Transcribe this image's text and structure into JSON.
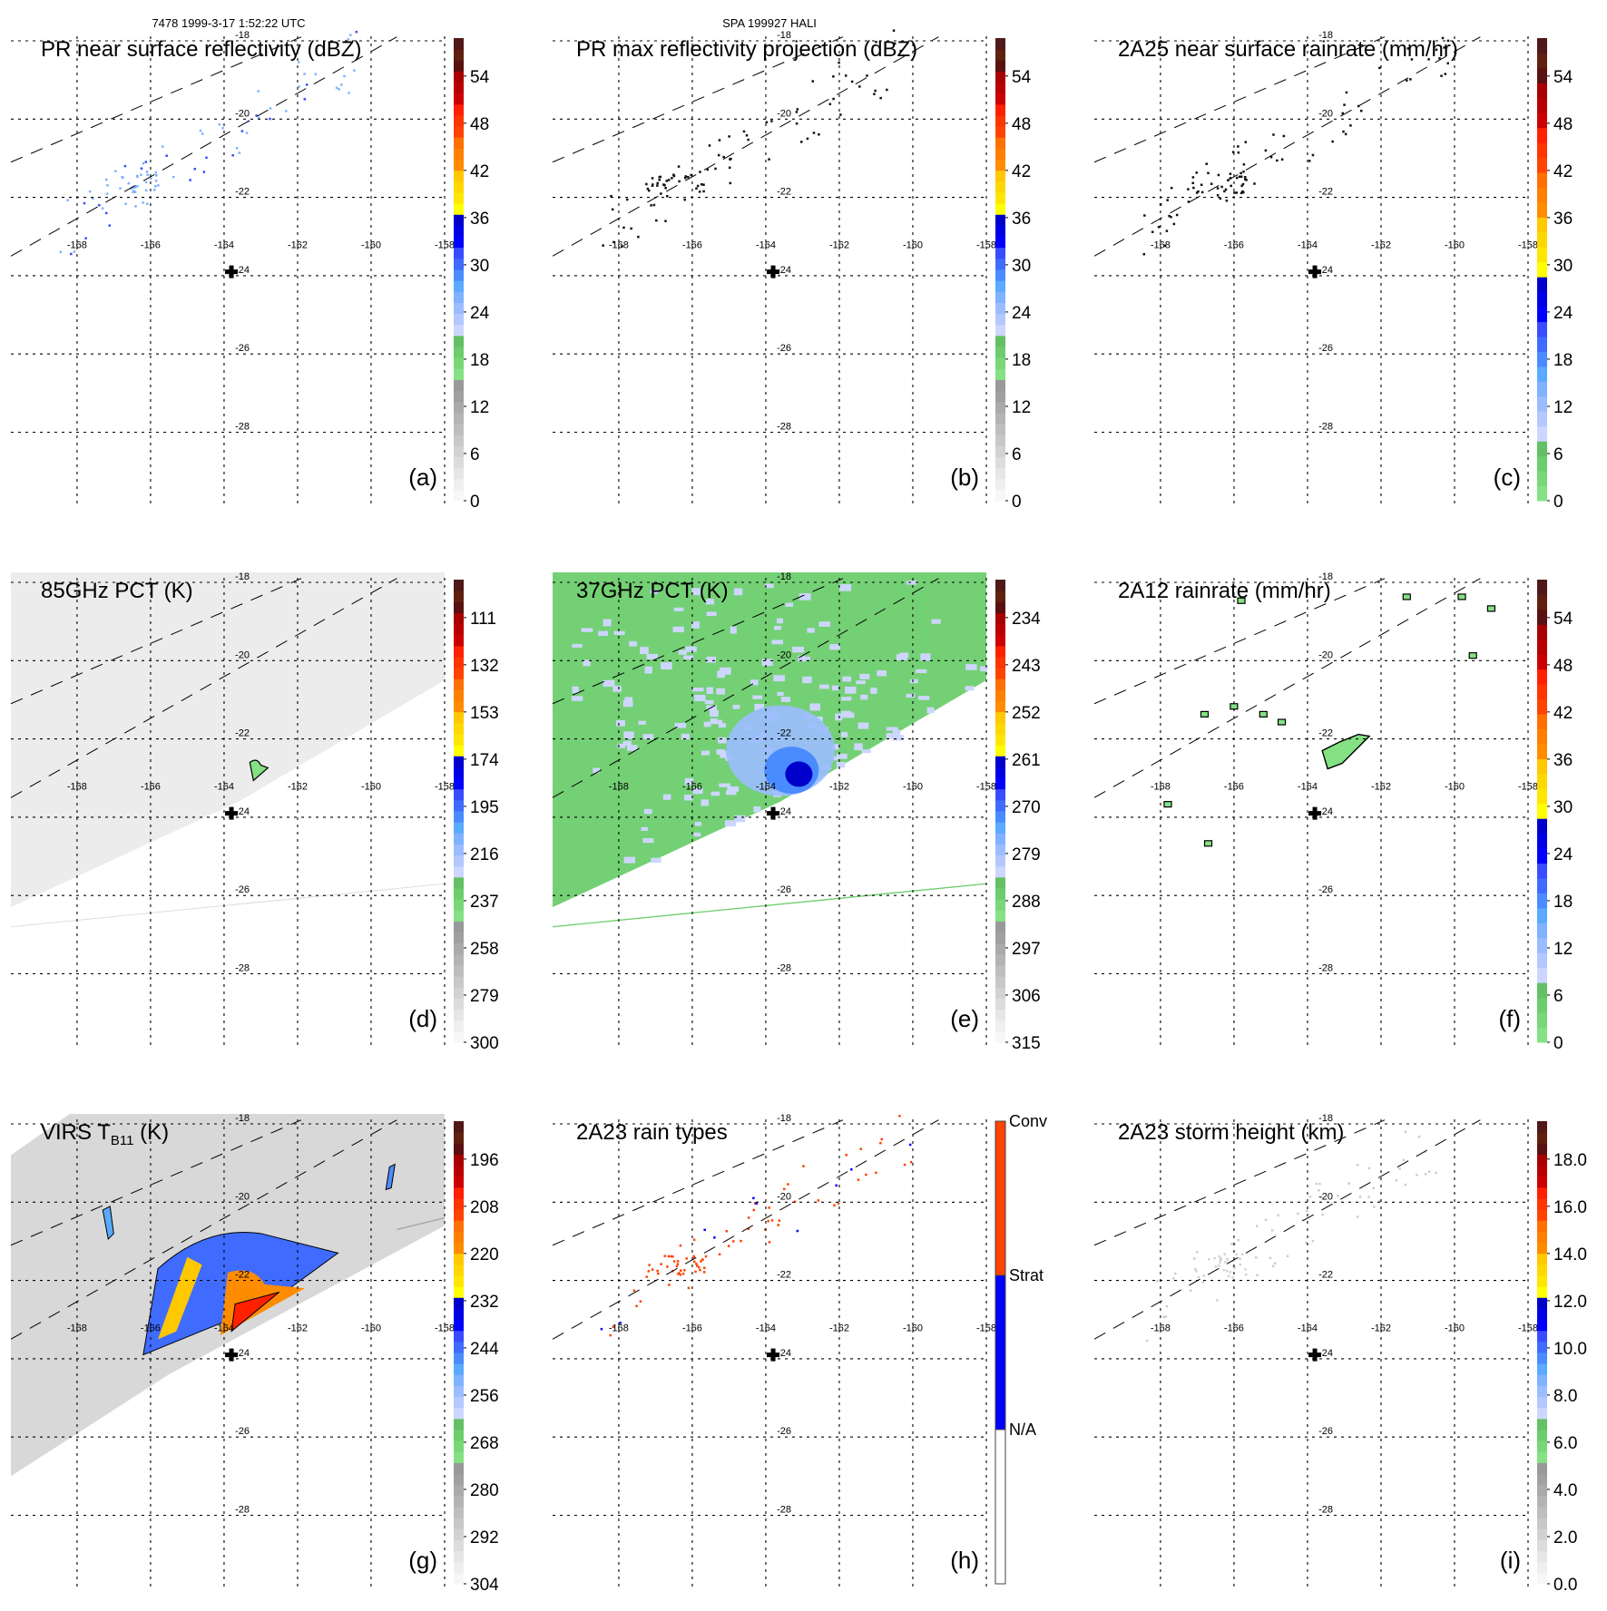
{
  "figure": {
    "header_left": "7478 1999-3-17 1:52:22 UTC",
    "header_center": "SPA 199927 HALI"
  },
  "chart_data": [
    {
      "id": "a",
      "type": "heatmap",
      "panel_label": "(a)",
      "title": "PR near surface reflectivity (dBZ)",
      "field": "pr_near_surface_reflectivity",
      "colorbar": {
        "palette": "standard",
        "ticks": [
          "54",
          "48",
          "42",
          "36",
          "30",
          "24",
          "18",
          "12",
          "6",
          "0"
        ],
        "range": [
          0,
          60
        ],
        "unit": "dBZ"
      },
      "swath": "pr",
      "content": "scattered weak echoes within PR swath, mostly light blue/blue near -21.5N -166.5E"
    },
    {
      "id": "b",
      "type": "heatmap",
      "panel_label": "(b)",
      "title": "PR max reflectivity projection (dBZ)",
      "field": "pr_max_reflectivity_projection",
      "colorbar": {
        "palette": "standard",
        "ticks": [
          "54",
          "48",
          "42",
          "36",
          "30",
          "24",
          "18",
          "12",
          "6",
          "0"
        ],
        "range": [
          0,
          60
        ],
        "unit": "dBZ"
      },
      "swath": "pr",
      "content": "scattered dark contoured echoes within PR swath"
    },
    {
      "id": "c",
      "type": "heatmap",
      "panel_label": "(c)",
      "title": "2A25 near surface rainrate (mm/hr)",
      "field": "rainrate_2a25",
      "colorbar": {
        "palette": "rain",
        "ticks": [
          "54",
          "48",
          "42",
          "36",
          "30",
          "24",
          "18",
          "12",
          "6",
          "0"
        ],
        "range": [
          0,
          60
        ],
        "unit": "mm/hr"
      },
      "swath": "pr",
      "content": "scattered dark contoured light rain within PR swath"
    },
    {
      "id": "d",
      "type": "heatmap",
      "panel_label": "(d)",
      "title": "85GHz PCT (K)",
      "field": "pct_85ghz",
      "colorbar": {
        "palette": "standard",
        "ticks": [
          "111",
          "132",
          "153",
          "174",
          "195",
          "216",
          "237",
          "258",
          "279",
          "300"
        ],
        "range": [
          300,
          90
        ],
        "unit": "K"
      },
      "swath": "tmi",
      "content": "mostly light grey swath, small green contoured feature near -22.7N -163.3E"
    },
    {
      "id": "e",
      "type": "heatmap",
      "panel_label": "(e)",
      "title": "37GHz PCT (K)",
      "field": "pct_37ghz",
      "colorbar": {
        "palette": "standard",
        "ticks": [
          "234",
          "243",
          "252",
          "261",
          "270",
          "279",
          "288",
          "297",
          "306",
          "315"
        ],
        "range": [
          315,
          225
        ],
        "unit": "K"
      },
      "swath": "tmi",
      "content": "green swath with light-blue patches, dark blue minimum near -22.7N -163.5E"
    },
    {
      "id": "f",
      "type": "heatmap",
      "panel_label": "(f)",
      "title": "2A12 rainrate (mm/hr)",
      "field": "rainrate_2a12",
      "colorbar": {
        "palette": "rain",
        "ticks": [
          "54",
          "48",
          "42",
          "36",
          "30",
          "24",
          "18",
          "12",
          "6",
          "0"
        ],
        "range": [
          0,
          60
        ],
        "unit": "mm/hr"
      },
      "swath": "tmi",
      "content": "small green contoured cells, larger green feature near -22.5N -163E"
    },
    {
      "id": "g",
      "type": "heatmap",
      "panel_label": "(g)",
      "title": "VIRS T",
      "title_sub": "B11",
      "title_suffix": "(K)",
      "field": "virs_tb11",
      "colorbar": {
        "palette": "standard",
        "ticks": [
          "196",
          "208",
          "220",
          "232",
          "244",
          "256",
          "268",
          "280",
          "292",
          "304"
        ],
        "range": [
          304,
          184
        ],
        "unit": "K"
      },
      "swath": "virs",
      "content": "grey cloud field with convective system, cold tops (orange/red) near -22.5N -163E"
    },
    {
      "id": "h",
      "type": "heatmap",
      "panel_label": "(h)",
      "title": "2A23 rain types",
      "field": "rain_type_2a23",
      "colorbar": {
        "palette": "categorical",
        "ticks": [
          "Conv",
          "Strat",
          "N/A"
        ],
        "categories": [
          {
            "name": "Conv",
            "color": "#ff4400"
          },
          {
            "name": "Strat",
            "color": "#0000ff"
          },
          {
            "name": "N/A",
            "color": "#ffffff"
          }
        ]
      },
      "swath": "pr",
      "content": "scattered orange (convective) and blue (stratiform) pixels within PR swath"
    },
    {
      "id": "i",
      "type": "heatmap",
      "panel_label": "(i)",
      "title": "2A23 storm height (km)",
      "field": "storm_height_2a23",
      "colorbar": {
        "palette": "standard",
        "ticks": [
          "18.0",
          "16.0",
          "14.0",
          "12.0",
          "10.0",
          "8.0",
          "6.0",
          "4.0",
          "2.0",
          "0.0"
        ],
        "range": [
          0,
          20
        ],
        "unit": "km"
      },
      "swath": "pr",
      "content": "faint light grey pixels within PR swath"
    }
  ],
  "axes": {
    "lat_ticks": [
      "-18",
      "-20",
      "-22",
      "-24",
      "-26",
      "-28"
    ],
    "lon_ticks": [
      "-168",
      "-166",
      "-164",
      "-162",
      "-160",
      "-158"
    ],
    "lat_range": [
      -18,
      -29.6
    ],
    "lon_range": [
      -169.8,
      -158
    ],
    "grid": "dotted",
    "center_marker": {
      "symbol": "plus",
      "lat": -23.9,
      "lon": -163.8
    }
  },
  "palettes": {
    "standard": [
      "#f7f7f7",
      "#efefef",
      "#e6e6e6",
      "#dcdcdc",
      "#d2d2d2",
      "#c8c8c8",
      "#bebebe",
      "#b4b4b4",
      "#aaaaaa",
      "#a0a0a0",
      "#999999",
      "#84e184",
      "#78d878",
      "#6ccd6c",
      "#64c064",
      "#cdd6ff",
      "#b3c8ff",
      "#9bbcff",
      "#7fb2ff",
      "#5aaaff",
      "#4a8cff",
      "#3f6cff",
      "#3a4cff",
      "#0000ff",
      "#0000e6",
      "#0000cc",
      "#ffff00",
      "#ffe600",
      "#ffd700",
      "#ffc800",
      "#ff8c00",
      "#ff8000",
      "#ff7000",
      "#ff4400",
      "#ff3500",
      "#ff2000",
      "#cc0000",
      "#b80000",
      "#a80000",
      "#5a1010",
      "#602010",
      "#501818"
    ],
    "rain": [
      "#84e184",
      "#78d878",
      "#6ccd6c",
      "#64c064",
      "#cdd6ff",
      "#b3c8ff",
      "#9bbcff",
      "#7fb2ff",
      "#5aaaff",
      "#4a8cff",
      "#3f6cff",
      "#3a4cff",
      "#0000ff",
      "#0000e6",
      "#0000cc",
      "#ffff00",
      "#ffe600",
      "#ffd700",
      "#ffc800",
      "#ff8c00",
      "#ff8000",
      "#ff7000",
      "#ff4400",
      "#ff3500",
      "#ff2000",
      "#cc0000",
      "#b80000",
      "#a80000",
      "#5a1010",
      "#602010",
      "#501818"
    ]
  }
}
